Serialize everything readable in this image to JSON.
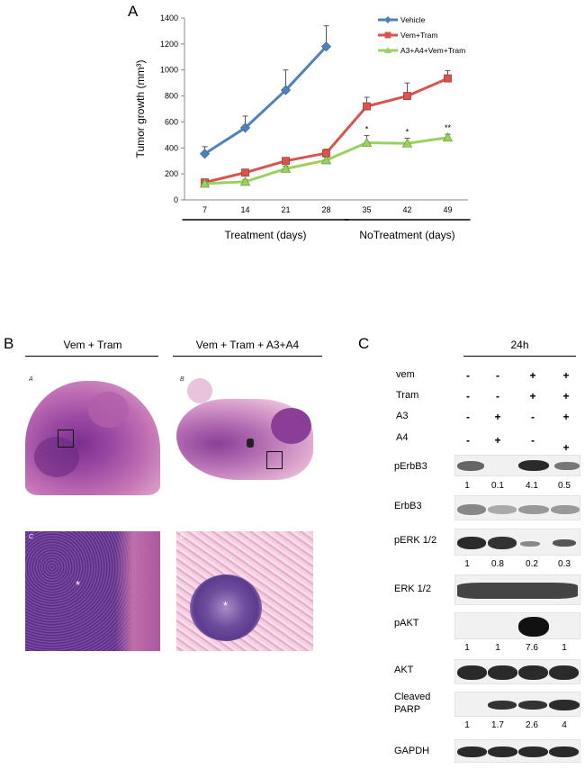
{
  "panelA": {
    "letter": "A",
    "chart_data": {
      "type": "line",
      "ylabel": "Tumor growth (mm³)",
      "ylim": [
        0,
        1400
      ],
      "yticks": [
        0,
        200,
        400,
        600,
        800,
        1000,
        1200,
        1400
      ],
      "categories": [
        "7",
        "14",
        "21",
        "28",
        "35",
        "42",
        "49"
      ],
      "grid": false,
      "legend_position": "top-right",
      "series": [
        {
          "name": "Vehicle",
          "color": "#4f81bd",
          "marker": "diamond",
          "values": [
            355,
            555,
            845,
            1180,
            null,
            null,
            null
          ],
          "errors": [
            55,
            90,
            155,
            160,
            null,
            null,
            null
          ]
        },
        {
          "name": "Vem+Tram",
          "color": "#d9534f",
          "marker": "square",
          "values": [
            135,
            210,
            300,
            360,
            720,
            800,
            935
          ],
          "errors": [
            15,
            15,
            20,
            30,
            70,
            100,
            60
          ]
        },
        {
          "name": "A3+A4+Vem+Tram",
          "color": "#9bd15f",
          "marker": "triangle",
          "values": [
            125,
            140,
            240,
            305,
            440,
            435,
            480
          ],
          "errors": [
            15,
            15,
            20,
            25,
            55,
            40,
            25
          ]
        }
      ],
      "annotations": [
        {
          "category": "35",
          "text": "*"
        },
        {
          "category": "42",
          "text": "*"
        },
        {
          "category": "49",
          "text": "**"
        }
      ],
      "groups": [
        {
          "label": "Treatment (days)",
          "from": "7",
          "to": "28"
        },
        {
          "label": "NoTreatment (days)",
          "from": "35",
          "to": "49"
        }
      ]
    }
  },
  "panelB": {
    "letter": "B",
    "col1_title": "Vem + Tram",
    "col2_title": "Vem + Tram + A3+A4",
    "sub_a": "A",
    "sub_b": "B",
    "sub_c": "C",
    "sub_d": "D",
    "asterisk": "*"
  },
  "panelC": {
    "letter": "C",
    "time_label": "24h",
    "treatments": [
      {
        "label": "vem",
        "signs": [
          "-",
          "-",
          "+",
          "+"
        ]
      },
      {
        "label": "Tram",
        "signs": [
          "-",
          "-",
          "+",
          "+"
        ]
      },
      {
        "label": "A3",
        "signs": [
          "-",
          "+",
          "-",
          "+"
        ]
      },
      {
        "label": "A4",
        "signs": [
          "-",
          "+",
          "-",
          "+"
        ]
      }
    ],
    "blots": [
      {
        "label": "pErbB3",
        "quant": [
          "1",
          "0.1",
          "4.1",
          "0.5"
        ]
      },
      {
        "label": "ErbB3",
        "quant": []
      },
      {
        "label": "pERK 1/2",
        "quant": [
          "1",
          "0.8",
          "0.2",
          "0.3"
        ]
      },
      {
        "label": "ERK 1/2",
        "quant": []
      },
      {
        "label": "pAKT",
        "quant": [
          "1",
          "1",
          "7.6",
          "1"
        ]
      },
      {
        "label": "AKT",
        "quant": []
      },
      {
        "label": "Cleaved PARP",
        "label_line1": "Cleaved",
        "label_line2": "PARP",
        "quant": [
          "1",
          "1.7",
          "2.6",
          "4"
        ]
      },
      {
        "label": "GAPDH",
        "quant": []
      }
    ]
  }
}
